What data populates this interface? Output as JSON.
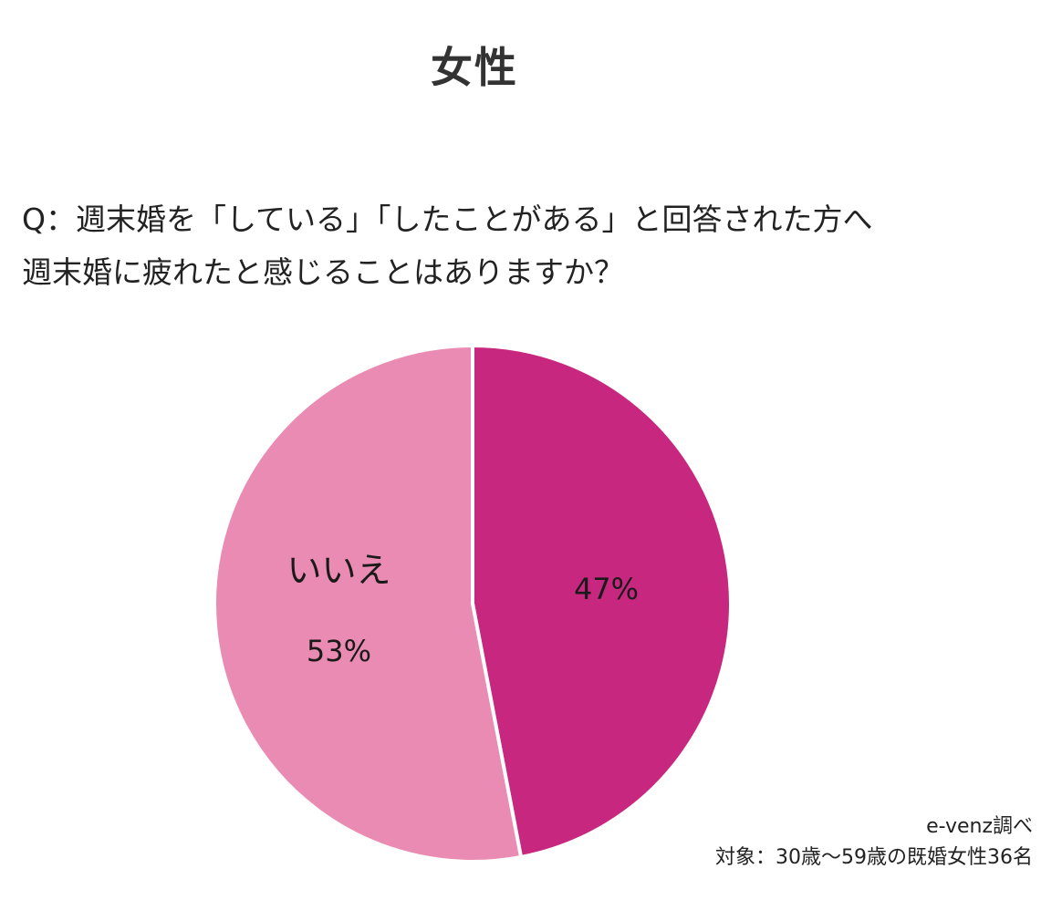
{
  "title": "女性",
  "question": {
    "line1": "Q：週末婚を「している」「したことがある」と回答された方へ",
    "line2": "週末婚に疲れたと感じることはありますか？"
  },
  "source": {
    "line1": "e-venz調べ",
    "line2": "対象：30歳〜59歳の既婚女性36名"
  },
  "chart_data": {
    "type": "pie",
    "title": "女性",
    "slices": [
      {
        "name": "",
        "value": 47,
        "label": "47%",
        "color": "#c8277f"
      },
      {
        "name": "いいえ",
        "value": 53,
        "label": "53%",
        "color": "#ea8bb3"
      }
    ],
    "start": "12 o'clock",
    "direction": "clockwise",
    "separator_color": "#ffffff",
    "legend": "none"
  }
}
